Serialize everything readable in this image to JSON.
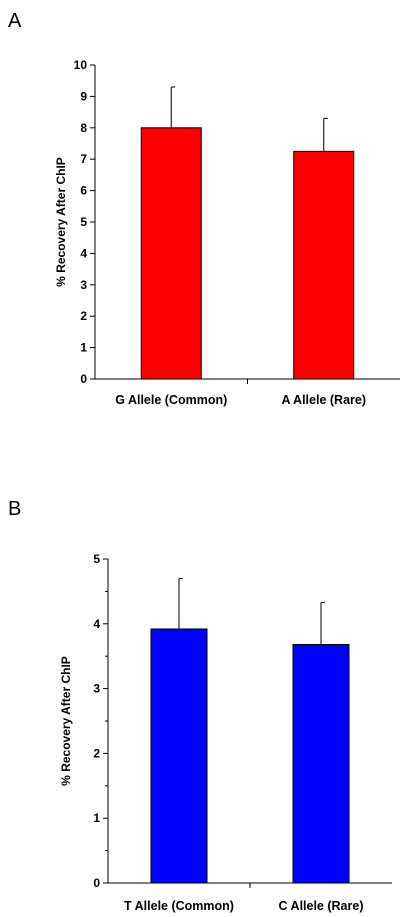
{
  "panels": {
    "a": {
      "label": "A"
    },
    "b": {
      "label": "B"
    }
  },
  "colors": {
    "panel_a_bar": "#ff0000",
    "panel_b_bar": "#0000ff",
    "axis": "#000000"
  },
  "chart_data": [
    {
      "type": "bar",
      "panel": "A",
      "categories": [
        "G Allele (Common)",
        "A Allele (Rare)"
      ],
      "series": [
        {
          "values": [
            8.0,
            7.25
          ],
          "error": [
            1.3,
            1.05
          ],
          "color": "#ff0000"
        }
      ],
      "ylabel": "% Recovery After ChIP",
      "xlabel": "",
      "ylim": [
        0,
        10
      ],
      "yticks": [
        0,
        1,
        2,
        3,
        4,
        5,
        6,
        7,
        8,
        9,
        10
      ],
      "grid": false
    },
    {
      "type": "bar",
      "panel": "B",
      "categories": [
        "T Allele (Common)",
        "C Allele (Rare)"
      ],
      "series": [
        {
          "values": [
            3.92,
            3.68
          ],
          "error": [
            0.78,
            0.65
          ],
          "color": "#0000ff"
        }
      ],
      "ylabel": "% Recovery After ChIP",
      "xlabel": "",
      "ylim": [
        0,
        5
      ],
      "yticks": [
        0,
        1,
        2,
        3,
        4,
        5
      ],
      "minor_ticks": true,
      "grid": false
    }
  ]
}
